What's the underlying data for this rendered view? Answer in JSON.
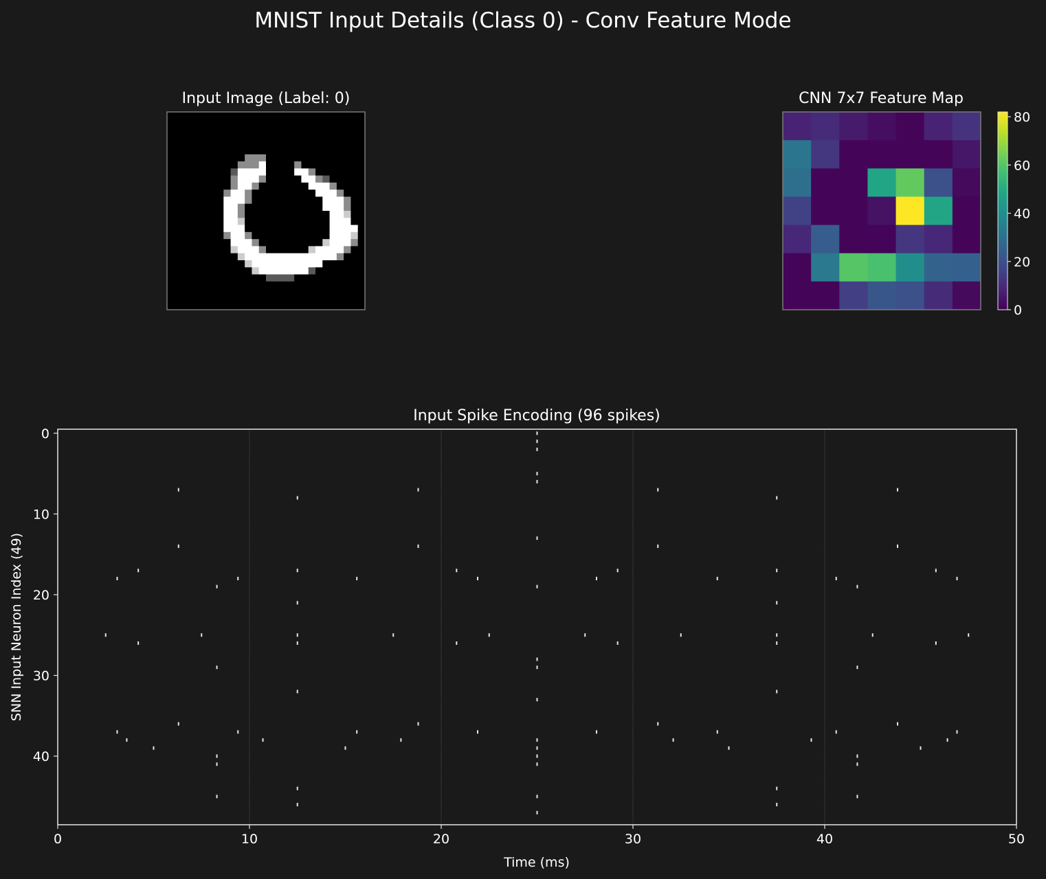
{
  "figure": {
    "title": "MNIST Input Details (Class 0) - Conv Feature Mode",
    "background": "#1a1a1a"
  },
  "chart_data": [
    {
      "type": "heatmap",
      "title": "Input Image (Label: 0)",
      "colormap": "gray",
      "value_range": [
        0,
        1
      ],
      "rows": [
        "............................",
        "............................",
        "............................",
        "............................",
        "............................",
        "............................",
        "...........333..............",
        "..........3336....3.........",
        ".........26666....663.......",
        ".........36663.....6632.....",
        ".........3663.......6663....",
        "........3663.........6663...",
        "........6663..........6663..",
        "........663...........6663..",
        "........663............664..",
        "........664............666..",
        "........666............6666.",
        "........3663...........6664.",
        ".........6663.........46663.",
        ".........46663......466663..",
        "..........466666666666663...",
        "...........46666666666......",
        "............466666662.......",
        "..............2222..........",
        "............................",
        "............................",
        "............................",
        "............................"
      ],
      "palette": {
        ".": 0.0,
        "2": 0.35,
        "3": 0.55,
        "4": 0.8,
        "6": 1.0
      }
    },
    {
      "type": "heatmap",
      "title": "CNN 7x7 Feature Map",
      "colormap": "viridis",
      "colorbar": {
        "range": [
          0,
          82
        ],
        "ticks": [
          "0",
          "20",
          "40",
          "60",
          "80"
        ]
      },
      "values": [
        [
          8,
          10,
          6,
          3,
          1,
          8,
          12
        ],
        [
          32,
          13,
          1,
          1,
          1,
          1,
          5
        ],
        [
          30,
          1,
          1,
          48,
          62,
          20,
          2
        ],
        [
          16,
          1,
          1,
          4,
          82,
          48,
          1
        ],
        [
          9,
          24,
          1,
          1,
          13,
          9,
          1
        ],
        [
          1,
          33,
          60,
          58,
          40,
          26,
          25
        ],
        [
          1,
          1,
          15,
          22,
          20,
          10,
          2
        ]
      ]
    },
    {
      "type": "scatter",
      "title": "Input Spike Encoding (96 spikes)",
      "xlabel": "Time (ms)",
      "ylabel": "SNN Input Neuron Index (49)",
      "xlim": [
        0,
        50
      ],
      "ylim": [
        48.5,
        -0.5
      ],
      "xticks": [
        "0",
        "10",
        "20",
        "30",
        "40",
        "50"
      ],
      "yticks": [
        "0",
        "10",
        "20",
        "30",
        "40"
      ],
      "grid_x": [
        10,
        20,
        30,
        40
      ],
      "marker": "short vertical tick",
      "spikes": [
        [
          25.0,
          0
        ],
        [
          25.0,
          1
        ],
        [
          25.0,
          2
        ],
        [
          25.0,
          5
        ],
        [
          25.0,
          6
        ],
        [
          6.3,
          7
        ],
        [
          18.8,
          7
        ],
        [
          31.3,
          7
        ],
        [
          43.8,
          7
        ],
        [
          12.5,
          8
        ],
        [
          37.5,
          8
        ],
        [
          25.0,
          13
        ],
        [
          6.3,
          14
        ],
        [
          18.8,
          14
        ],
        [
          31.3,
          14
        ],
        [
          43.8,
          14
        ],
        [
          4.2,
          17
        ],
        [
          12.5,
          17
        ],
        [
          20.8,
          17
        ],
        [
          29.2,
          17
        ],
        [
          37.5,
          17
        ],
        [
          45.8,
          17
        ],
        [
          3.1,
          18
        ],
        [
          9.4,
          18
        ],
        [
          15.6,
          18
        ],
        [
          21.9,
          18
        ],
        [
          28.1,
          18
        ],
        [
          34.4,
          18
        ],
        [
          40.6,
          18
        ],
        [
          46.9,
          18
        ],
        [
          8.3,
          19
        ],
        [
          25.0,
          19
        ],
        [
          41.7,
          19
        ],
        [
          12.5,
          21
        ],
        [
          37.5,
          21
        ],
        [
          2.5,
          25
        ],
        [
          7.5,
          25
        ],
        [
          12.5,
          25
        ],
        [
          17.5,
          25
        ],
        [
          22.5,
          25
        ],
        [
          27.5,
          25
        ],
        [
          32.5,
          25
        ],
        [
          37.5,
          25
        ],
        [
          42.5,
          25
        ],
        [
          47.5,
          25
        ],
        [
          4.2,
          26
        ],
        [
          12.5,
          26
        ],
        [
          20.8,
          26
        ],
        [
          29.2,
          26
        ],
        [
          37.5,
          26
        ],
        [
          45.8,
          26
        ],
        [
          25.0,
          28
        ],
        [
          8.3,
          29
        ],
        [
          25.0,
          29
        ],
        [
          41.7,
          29
        ],
        [
          12.5,
          32
        ],
        [
          37.5,
          32
        ],
        [
          25.0,
          33
        ],
        [
          6.3,
          36
        ],
        [
          18.8,
          36
        ],
        [
          31.3,
          36
        ],
        [
          43.8,
          36
        ],
        [
          3.1,
          37
        ],
        [
          9.4,
          37
        ],
        [
          15.6,
          37
        ],
        [
          21.9,
          37
        ],
        [
          28.1,
          37
        ],
        [
          34.4,
          37
        ],
        [
          40.6,
          37
        ],
        [
          46.9,
          37
        ],
        [
          3.6,
          38
        ],
        [
          10.7,
          38
        ],
        [
          17.9,
          38
        ],
        [
          25.0,
          38
        ],
        [
          32.1,
          38
        ],
        [
          39.3,
          38
        ],
        [
          46.4,
          38
        ],
        [
          5.0,
          39
        ],
        [
          15.0,
          39
        ],
        [
          25.0,
          39
        ],
        [
          35.0,
          39
        ],
        [
          45.0,
          39
        ],
        [
          8.3,
          40
        ],
        [
          25.0,
          40
        ],
        [
          41.7,
          40
        ],
        [
          8.3,
          41
        ],
        [
          25.0,
          41
        ],
        [
          41.7,
          41
        ],
        [
          12.5,
          44
        ],
        [
          37.5,
          44
        ],
        [
          8.3,
          45
        ],
        [
          25.0,
          45
        ],
        [
          41.7,
          45
        ],
        [
          12.5,
          46
        ],
        [
          37.5,
          46
        ],
        [
          25.0,
          47
        ]
      ]
    }
  ]
}
